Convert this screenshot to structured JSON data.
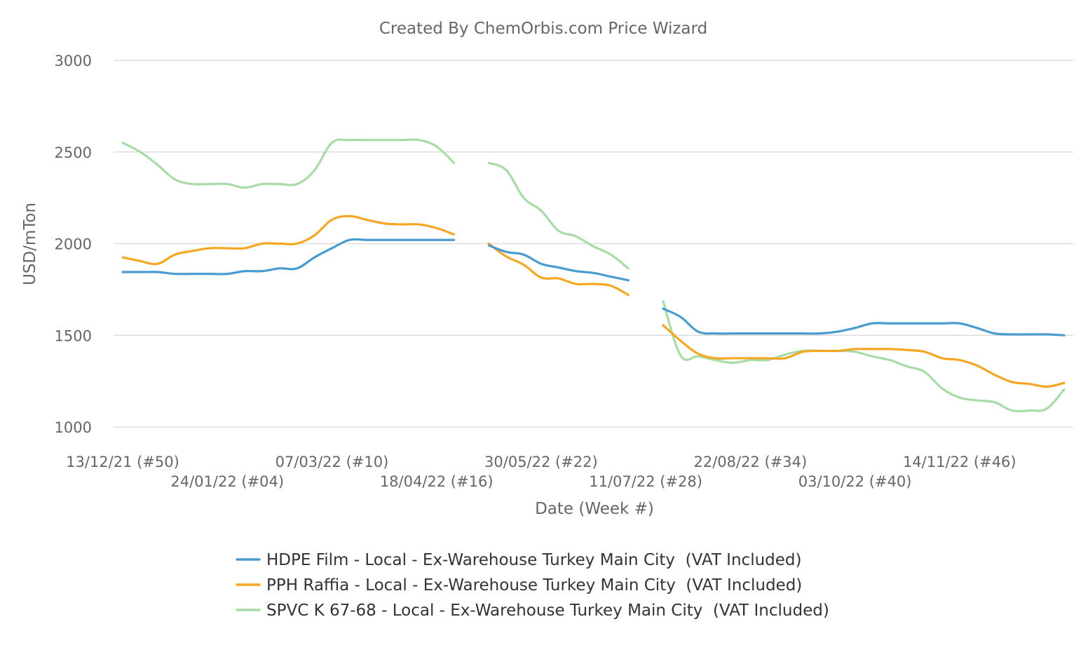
{
  "chart_data": {
    "type": "line",
    "title": "Created By ChemOrbis.com Price Wizard",
    "xlabel": "Date (Week #)",
    "ylabel": "USD/mTon",
    "ylim": [
      1000,
      3000
    ],
    "yticks": [
      1000,
      1500,
      2000,
      2500,
      3000
    ],
    "xticks": [
      {
        "label": "13/12/21 (#50)",
        "week": 0
      },
      {
        "label": "24/01/22 (#04)",
        "week": 6
      },
      {
        "label": "07/03/22 (#10)",
        "week": 12
      },
      {
        "label": "18/04/22 (#16)",
        "week": 18
      },
      {
        "label": "30/05/22 (#22)",
        "week": 24
      },
      {
        "label": "11/07/22 (#28)",
        "week": 30
      },
      {
        "label": "22/08/22 (#34)",
        "week": 36
      },
      {
        "label": "03/10/22 (#40)",
        "week": 42
      },
      {
        "label": "14/11/22 (#46)",
        "week": 48
      }
    ],
    "grid": true,
    "legend_position": "bottom",
    "series": [
      {
        "name": "HDPE Film - Local - Ex-Warehouse Turkey Main City  (VAT Included)",
        "color": "#4a9bd0",
        "segments": [
          [
            [
              0,
              1845
            ],
            [
              1,
              1845
            ],
            [
              2,
              1845
            ],
            [
              3,
              1835
            ],
            [
              4,
              1835
            ],
            [
              5,
              1835
            ],
            [
              6,
              1835
            ],
            [
              7,
              1850
            ],
            [
              8,
              1850
            ],
            [
              9,
              1865
            ],
            [
              10,
              1865
            ],
            [
              11,
              1925
            ],
            [
              12,
              1975
            ],
            [
              13,
              2020
            ],
            [
              14,
              2020
            ],
            [
              15,
              2020
            ],
            [
              16,
              2020
            ],
            [
              17,
              2020
            ],
            [
              18,
              2020
            ],
            [
              19,
              2020
            ]
          ],
          [
            [
              21,
              1990
            ],
            [
              22,
              1955
            ],
            [
              23,
              1940
            ],
            [
              24,
              1890
            ],
            [
              25,
              1870
            ],
            [
              26,
              1850
            ],
            [
              27,
              1840
            ],
            [
              28,
              1820
            ],
            [
              29,
              1800
            ]
          ],
          [
            [
              31,
              1645
            ],
            [
              32,
              1600
            ],
            [
              33,
              1520
            ],
            [
              34,
              1510
            ],
            [
              35,
              1510
            ],
            [
              36,
              1510
            ],
            [
              37,
              1510
            ],
            [
              38,
              1510
            ],
            [
              39,
              1510
            ],
            [
              40,
              1510
            ],
            [
              41,
              1520
            ],
            [
              42,
              1540
            ],
            [
              43,
              1565
            ],
            [
              44,
              1565
            ],
            [
              45,
              1565
            ],
            [
              46,
              1565
            ],
            [
              47,
              1565
            ],
            [
              48,
              1565
            ],
            [
              49,
              1540
            ],
            [
              50,
              1510
            ],
            [
              51,
              1505
            ],
            [
              52,
              1505
            ],
            [
              53,
              1505
            ],
            [
              54,
              1500
            ]
          ]
        ]
      },
      {
        "name": "PPH Raffia - Local - Ex-Warehouse Turkey Main City  (VAT Included)",
        "color": "#f5a623",
        "segments": [
          [
            [
              0,
              1925
            ],
            [
              1,
              1905
            ],
            [
              2,
              1890
            ],
            [
              3,
              1940
            ],
            [
              4,
              1960
            ],
            [
              5,
              1975
            ],
            [
              6,
              1975
            ],
            [
              7,
              1975
            ],
            [
              8,
              2000
            ],
            [
              9,
              2000
            ],
            [
              10,
              2000
            ],
            [
              11,
              2045
            ],
            [
              12,
              2130
            ],
            [
              13,
              2150
            ],
            [
              14,
              2130
            ],
            [
              15,
              2110
            ],
            [
              16,
              2105
            ],
            [
              17,
              2105
            ],
            [
              18,
              2085
            ],
            [
              19,
              2050
            ]
          ],
          [
            [
              21,
              2000
            ],
            [
              22,
              1930
            ],
            [
              23,
              1885
            ],
            [
              24,
              1815
            ],
            [
              25,
              1810
            ],
            [
              26,
              1780
            ],
            [
              27,
              1780
            ],
            [
              28,
              1770
            ],
            [
              29,
              1720
            ]
          ],
          [
            [
              31,
              1555
            ],
            [
              32,
              1470
            ],
            [
              33,
              1400
            ],
            [
              34,
              1375
            ],
            [
              35,
              1375
            ],
            [
              36,
              1375
            ],
            [
              37,
              1375
            ],
            [
              38,
              1375
            ],
            [
              39,
              1410
            ],
            [
              40,
              1415
            ],
            [
              41,
              1415
            ],
            [
              42,
              1425
            ],
            [
              43,
              1425
            ],
            [
              44,
              1425
            ],
            [
              45,
              1420
            ],
            [
              46,
              1410
            ],
            [
              47,
              1375
            ],
            [
              48,
              1365
            ],
            [
              49,
              1335
            ],
            [
              50,
              1285
            ],
            [
              51,
              1245
            ],
            [
              52,
              1235
            ],
            [
              53,
              1220
            ],
            [
              54,
              1240
            ]
          ]
        ]
      },
      {
        "name": "SPVC K 67-68 - Local - Ex-Warehouse Turkey Main City  (VAT Included)",
        "color": "#a8dba8",
        "segments": [
          [
            [
              0,
              2550
            ],
            [
              1,
              2500
            ],
            [
              2,
              2430
            ],
            [
              3,
              2350
            ],
            [
              4,
              2325
            ],
            [
              5,
              2325
            ],
            [
              6,
              2325
            ],
            [
              7,
              2305
            ],
            [
              8,
              2325
            ],
            [
              9,
              2325
            ],
            [
              10,
              2325
            ],
            [
              11,
              2400
            ],
            [
              12,
              2550
            ],
            [
              13,
              2565
            ],
            [
              14,
              2565
            ],
            [
              15,
              2565
            ],
            [
              16,
              2565
            ],
            [
              17,
              2565
            ],
            [
              18,
              2530
            ],
            [
              19,
              2440
            ]
          ],
          [
            [
              21,
              2440
            ],
            [
              22,
              2400
            ],
            [
              23,
              2250
            ],
            [
              24,
              2180
            ],
            [
              25,
              2070
            ],
            [
              26,
              2040
            ],
            [
              27,
              1985
            ],
            [
              28,
              1940
            ],
            [
              29,
              1865
            ]
          ],
          [
            [
              31,
              1685
            ],
            [
              32,
              1390
            ],
            [
              33,
              1385
            ],
            [
              34,
              1365
            ],
            [
              35,
              1350
            ],
            [
              36,
              1365
            ],
            [
              37,
              1365
            ],
            [
              38,
              1395
            ],
            [
              39,
              1415
            ],
            [
              40,
              1415
            ],
            [
              41,
              1415
            ],
            [
              42,
              1410
            ],
            [
              43,
              1385
            ],
            [
              44,
              1365
            ],
            [
              45,
              1330
            ],
            [
              46,
              1300
            ],
            [
              47,
              1210
            ],
            [
              48,
              1160
            ],
            [
              49,
              1145
            ],
            [
              50,
              1135
            ],
            [
              51,
              1090
            ],
            [
              52,
              1090
            ],
            [
              53,
              1100
            ],
            [
              54,
              1205
            ]
          ]
        ]
      }
    ]
  }
}
